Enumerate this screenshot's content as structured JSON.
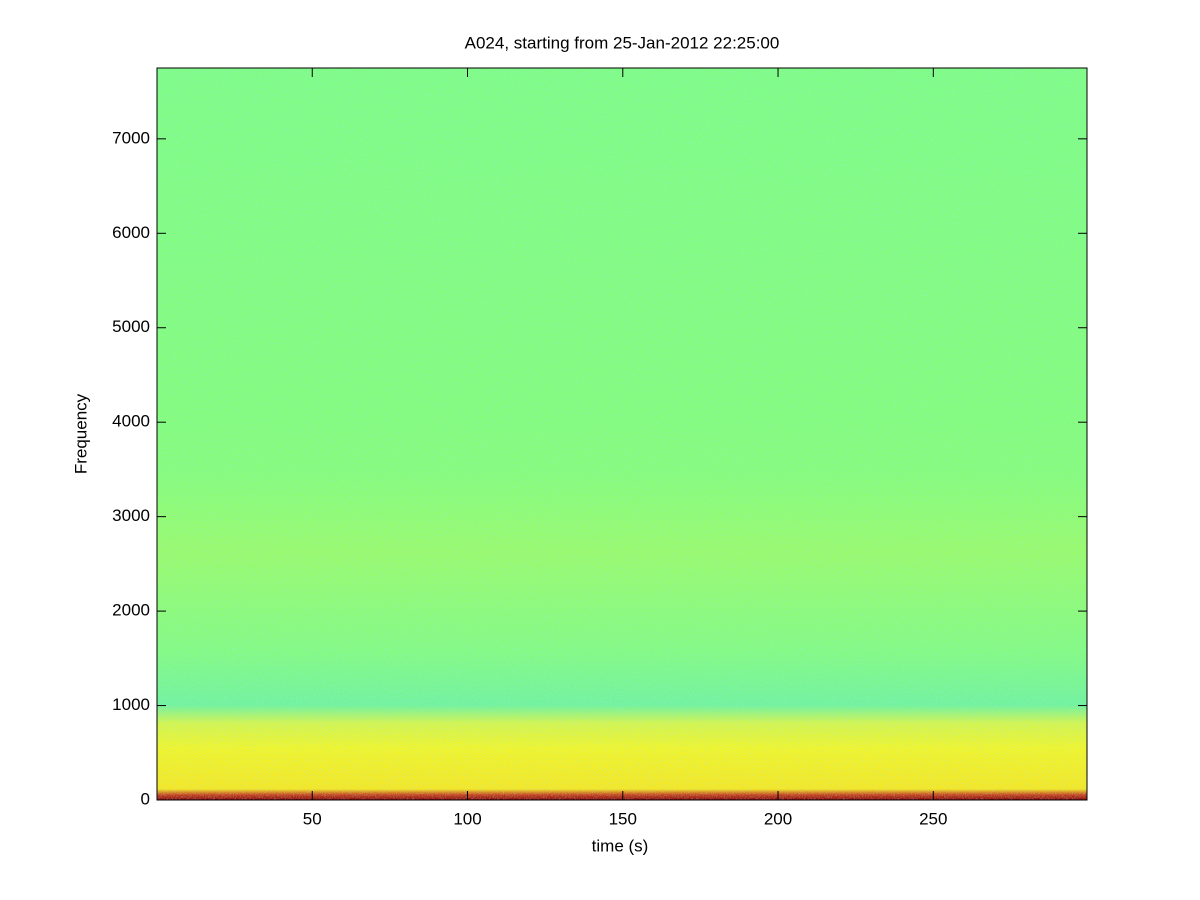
{
  "chart_data": {
    "type": "spectrogram",
    "title": "A024, starting from 25-Jan-2012 22:25:00",
    "x_label": "time (s)",
    "y_label": "Frequency",
    "xlim": [
      0,
      299.5
    ],
    "xticks": [
      50,
      100,
      150,
      200,
      250
    ],
    "ylim": [
      0,
      7750
    ],
    "yticks": [
      0,
      1000,
      2000,
      3000,
      4000,
      5000,
      6000,
      7000
    ]
  }
}
